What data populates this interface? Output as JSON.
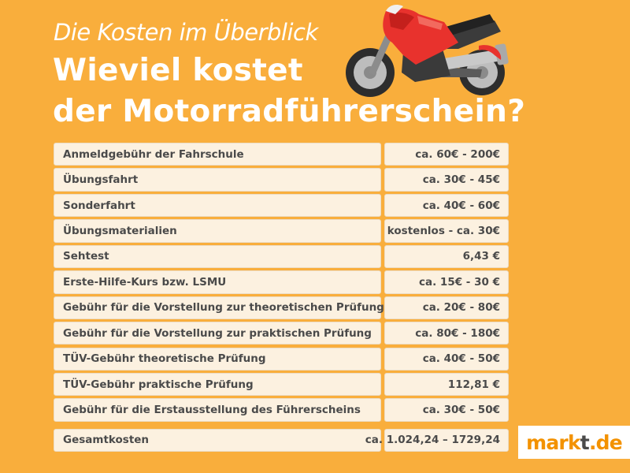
{
  "header": {
    "subtitle": "Die Kosten im Überblick",
    "title_line1": "Wieviel kostet",
    "title_line2": "der Motorradführerschein?"
  },
  "illustration": {
    "icon": "motorcycle-icon"
  },
  "costs": [
    {
      "label": "Anmeldgebühr der Fahrschule",
      "value": "ca. 60€ - 200€"
    },
    {
      "label": "Übungsfahrt",
      "value": "ca. 30€ - 45€"
    },
    {
      "label": "Sonderfahrt",
      "value": "ca. 40€ - 60€"
    },
    {
      "label": "Übungsmaterialien",
      "value": "kostenlos - ca. 30€"
    },
    {
      "label": "Sehtest",
      "value": "6,43 €"
    },
    {
      "label": "Erste-Hilfe-Kurs bzw. LSMU",
      "value": "ca. 15€ - 30 €"
    },
    {
      "label": "Gebühr für die Vorstellung zur theoretischen Prüfung",
      "value": "ca. 20€ - 80€"
    },
    {
      "label": "Gebühr für die Vorstellung zur praktischen Prüfung",
      "value": "ca. 80€ - 180€"
    },
    {
      "label": "TÜV-Gebühr theoretische Prüfung",
      "value": "ca. 40€ - 50€"
    },
    {
      "label": "TÜV-Gebühr praktische Prüfung",
      "value": "112,81 €"
    },
    {
      "label": "Gebühr für die Erstausstellung des Führerscheins",
      "value": "ca. 30€ - 50€"
    }
  ],
  "total": {
    "label": "Gesamtkosten",
    "value": "ca. 1.024,24 – 1729,24"
  },
  "logo": {
    "part1": "mark",
    "part2": "t",
    "part3": ".de"
  },
  "colors": {
    "background": "#F9AE3C",
    "cell": "#FCF1E0",
    "text": "#4a4a4a",
    "logo_orange": "#F39200",
    "logo_gray": "#4a4a4a",
    "moto_red": "#E8322D"
  }
}
